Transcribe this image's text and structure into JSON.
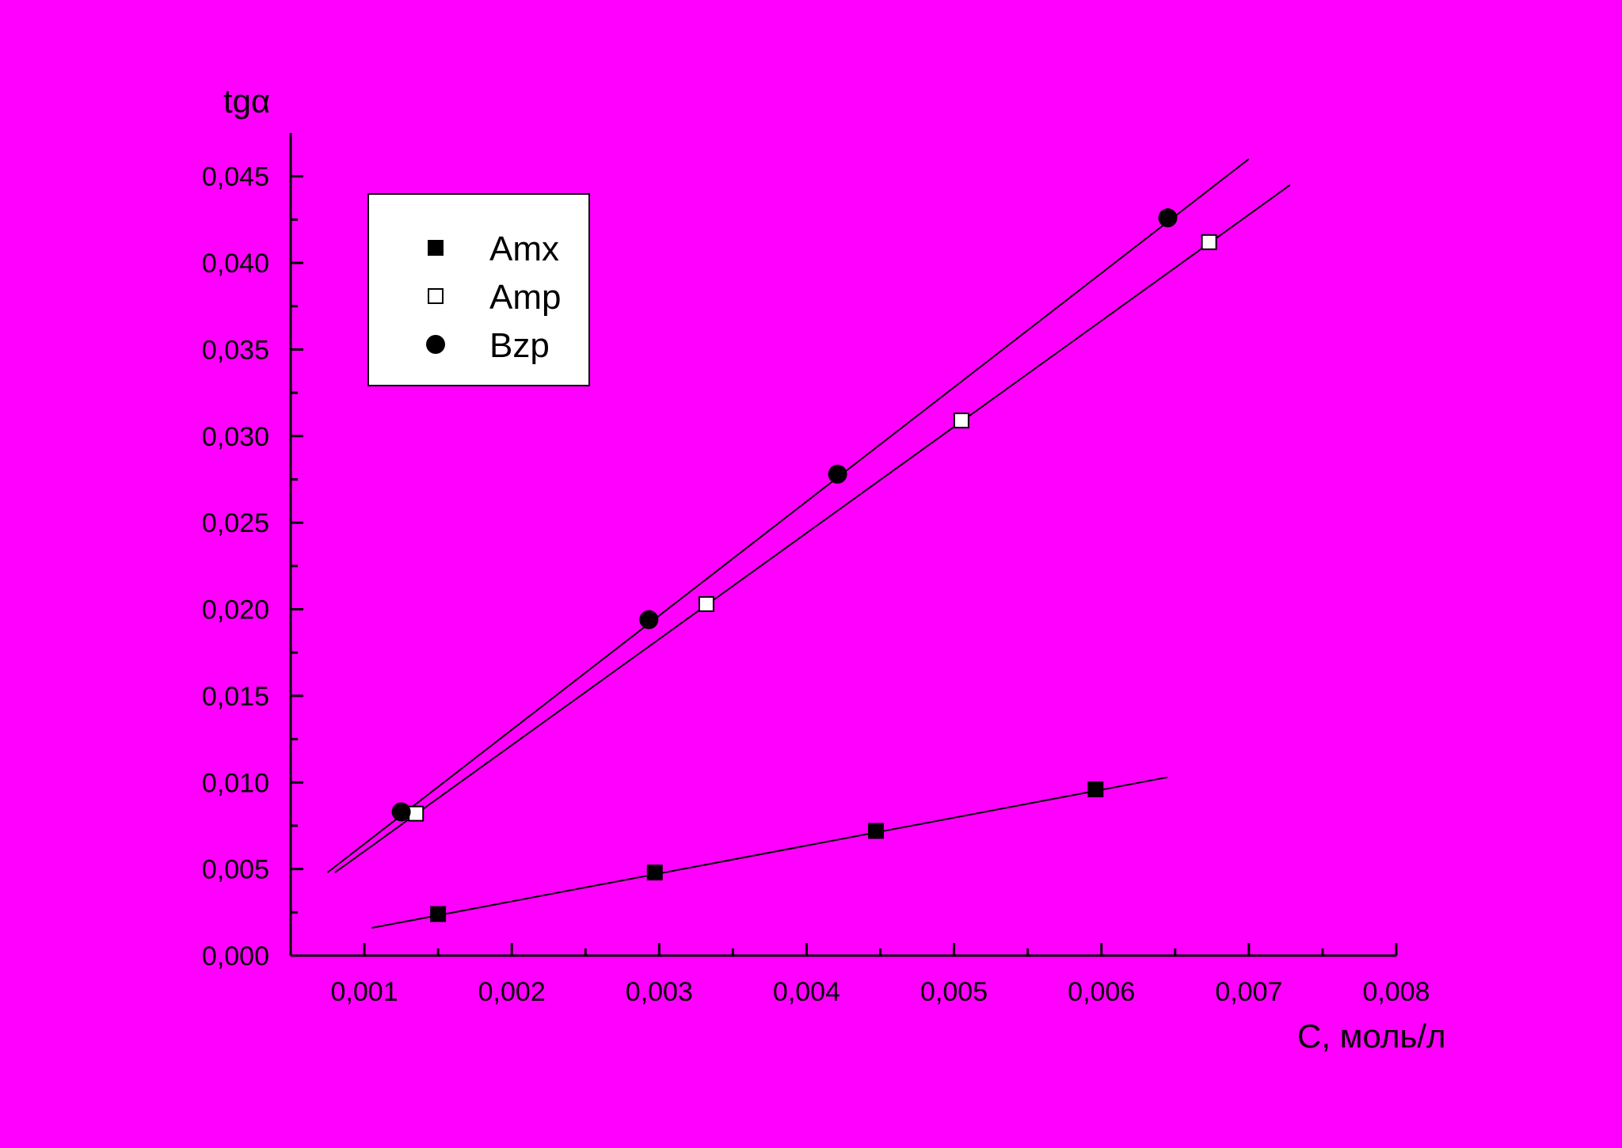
{
  "chart_data": {
    "type": "scatter",
    "title": "",
    "xlabel": "C, моль/л",
    "ylabel": "tgα",
    "xlim": [
      0.0005,
      0.008
    ],
    "ylim": [
      0.0,
      0.0475
    ],
    "x_ticks": [
      0.001,
      0.002,
      0.003,
      0.004,
      0.005,
      0.006,
      0.007,
      0.008
    ],
    "x_tick_labels": [
      "0,001",
      "0,002",
      "0,003",
      "0,004",
      "0,005",
      "0,006",
      "0,007",
      "0,008"
    ],
    "y_ticks": [
      0.0,
      0.005,
      0.01,
      0.015,
      0.02,
      0.025,
      0.03,
      0.035,
      0.04,
      0.045
    ],
    "y_tick_labels": [
      "0,000",
      "0,005",
      "0,010",
      "0,015",
      "0,020",
      "0,025",
      "0,030",
      "0,035",
      "0,040",
      "0,045"
    ],
    "grid": false,
    "legend_position": "top-left",
    "series": [
      {
        "name": "Amx",
        "marker": "filled-square",
        "x": [
          0.0015,
          0.00297,
          0.00447,
          0.00596
        ],
        "y": [
          0.0024,
          0.0048,
          0.0072,
          0.0096
        ],
        "fit_line": {
          "x": [
            0.00105,
            0.00645
          ],
          "y": [
            0.0016,
            0.0103
          ]
        }
      },
      {
        "name": "Amp",
        "marker": "open-square",
        "x": [
          0.00135,
          0.00332,
          0.00505,
          0.00673
        ],
        "y": [
          0.0082,
          0.0203,
          0.0309,
          0.0412
        ],
        "fit_line": {
          "x": [
            0.0008,
            0.00728
          ],
          "y": [
            0.0048,
            0.0445
          ]
        }
      },
      {
        "name": "Bzp",
        "marker": "filled-circle",
        "x": [
          0.00125,
          0.00293,
          0.00421,
          0.00645
        ],
        "y": [
          0.0083,
          0.0194,
          0.0278,
          0.0426
        ],
        "fit_line": {
          "x": [
            0.00075,
            0.007
          ],
          "y": [
            0.0048,
            0.046
          ]
        }
      }
    ],
    "colors": {
      "background": "#ff00ff",
      "ink": "#000000",
      "legend_fill": "#ffffff"
    }
  }
}
